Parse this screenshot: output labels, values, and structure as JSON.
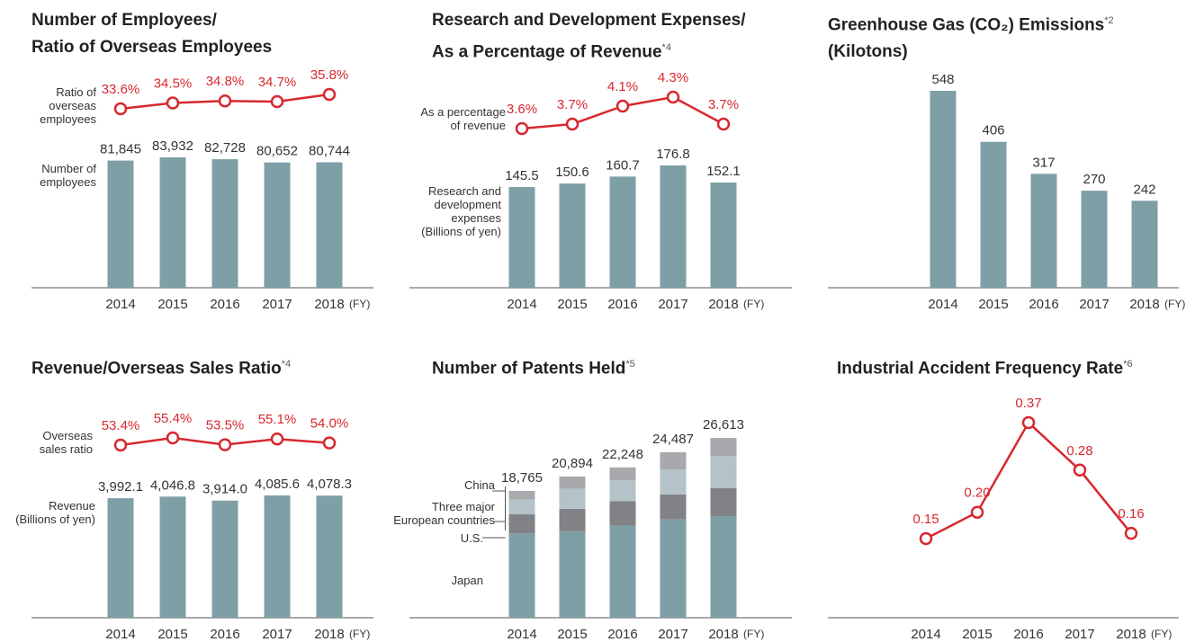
{
  "chart_data": [
    {
      "type": "combo",
      "title": "Number of Employees/\nRatio of Overseas Employees",
      "categories": [
        "2014",
        "2015",
        "2016",
        "2017",
        "2018"
      ],
      "x_label": "(FY)",
      "series": [
        {
          "name": "Number of\nemployees",
          "type": "bar",
          "color": "#7f9fa6",
          "values": [
            81845,
            83932,
            82728,
            80652,
            80744
          ],
          "value_labels": [
            "81,845",
            "83,932",
            "82,728",
            "80,652",
            "80,744"
          ]
        },
        {
          "name": "Ratio of\noverseas\nemployees",
          "type": "line",
          "color": "#d7282f",
          "values": [
            33.6,
            34.5,
            34.8,
            34.7,
            35.8
          ],
          "value_labels": [
            "33.6%",
            "34.5%",
            "34.8%",
            "34.7%",
            "35.8%"
          ]
        }
      ]
    },
    {
      "type": "combo",
      "title": "Research and Development Expenses/\nAs a Percentage of Revenue",
      "title_note": "*4",
      "categories": [
        "2014",
        "2015",
        "2016",
        "2017",
        "2018"
      ],
      "x_label": "(FY)",
      "series": [
        {
          "name": "Research and\ndevelopment\nexpenses\n(Billions of yen)",
          "type": "bar",
          "color": "#7f9fa6",
          "values": [
            145.5,
            150.6,
            160.7,
            176.8,
            152.1
          ]
        },
        {
          "name": "As a percentage\nof revenue",
          "type": "line",
          "color": "#d7282f",
          "values": [
            3.6,
            3.7,
            4.1,
            4.3,
            3.7
          ],
          "value_labels": [
            "3.6%",
            "3.7%",
            "4.1%",
            "4.3%",
            "3.7%"
          ]
        }
      ]
    },
    {
      "type": "bar",
      "title": "Greenhouse Gas (CO₂) Emissions",
      "title_note": "*2",
      "subtitle": "(Kilotons)",
      "categories": [
        "2014",
        "2015",
        "2016",
        "2017",
        "2018"
      ],
      "x_label": "(FY)",
      "color": "#7f9fa6",
      "values": [
        548,
        406,
        317,
        270,
        242
      ]
    },
    {
      "type": "combo",
      "title": "Revenue/Overseas Sales Ratio",
      "title_note": "*4",
      "categories": [
        "2014",
        "2015",
        "2016",
        "2017",
        "2018"
      ],
      "x_label": "(FY)",
      "series": [
        {
          "name": "Revenue\n(Billions of yen)",
          "type": "bar",
          "color": "#7f9fa6",
          "values": [
            3992.1,
            4046.8,
            3914.0,
            4085.6,
            4078.3
          ],
          "value_labels": [
            "3,992.1",
            "4,046.8",
            "3,914.0",
            "4,085.6",
            "4,078.3"
          ]
        },
        {
          "name": "Overseas\nsales ratio",
          "type": "line",
          "color": "#d7282f",
          "values": [
            53.4,
            55.4,
            53.5,
            55.1,
            54.0
          ],
          "value_labels": [
            "53.4%",
            "55.4%",
            "53.5%",
            "55.1%",
            "54.0%"
          ]
        }
      ]
    },
    {
      "type": "stacked-bar",
      "title": "Number of Patents Held",
      "title_note": "*5",
      "categories": [
        "2014",
        "2015",
        "2016",
        "2017",
        "2018"
      ],
      "x_label": "(FY)",
      "series": [
        {
          "name": "Japan",
          "color": "#7f9fa6",
          "values": [
            12470,
            12800,
            13630,
            14540,
            15040
          ]
        },
        {
          "name": "U.S.",
          "color": "#808285",
          "values": [
            2830,
            3330,
            3600,
            3700,
            4120
          ]
        },
        {
          "name": "Three major\nEuropean countries",
          "color": "#b3c3c8",
          "values": [
            2180,
            2950,
            3090,
            3700,
            4790
          ]
        },
        {
          "name": "China",
          "color": "#a7a9ac",
          "values": [
            1285,
            1814,
            1928,
            2547,
            2663
          ]
        }
      ],
      "totals": [
        18765,
        20894,
        22248,
        24487,
        26613
      ],
      "total_labels": [
        "18,765",
        "20,894",
        "22,248",
        "24,487",
        "26,613"
      ]
    },
    {
      "type": "line",
      "title": "Industrial Accident Frequency Rate",
      "title_note": "*6",
      "categories": [
        "2014",
        "2015",
        "2016",
        "2017",
        "2018"
      ],
      "x_label": "(FY)",
      "color": "#d7282f",
      "values": [
        0.15,
        0.2,
        0.37,
        0.28,
        0.16
      ],
      "value_labels": [
        "0.15",
        "0.20",
        "0.37",
        "0.28",
        "0.16"
      ]
    }
  ]
}
